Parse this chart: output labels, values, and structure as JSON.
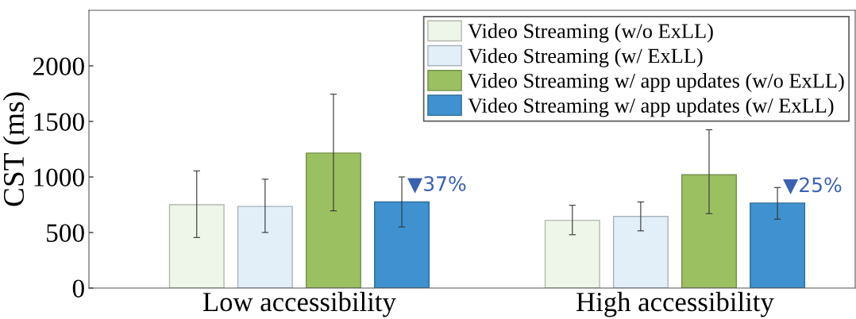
{
  "chart_data": {
    "type": "bar",
    "ylabel": "CST (ms)",
    "categories": [
      "Low accessibility",
      "High accessibility"
    ],
    "series": [
      {
        "name": "Video Streaming (w/o ExLL)",
        "color": "#eef5e9",
        "values": [
          750,
          610
        ],
        "errors": [
          [
            455,
            1055
          ],
          [
            480,
            745
          ]
        ]
      },
      {
        "name": "Video Streaming (w/ ExLL)",
        "color": "#e2eff9",
        "values": [
          735,
          645
        ],
        "errors": [
          [
            500,
            980
          ],
          [
            515,
            775
          ]
        ]
      },
      {
        "name": "Video Streaming w/ app updates (w/o ExLL)",
        "color": "#9bc062",
        "values": [
          1215,
          1020
        ],
        "errors": [
          [
            695,
            1745
          ],
          [
            670,
            1425
          ]
        ]
      },
      {
        "name": "Video Streaming w/ app updates (w/ ExLL)",
        "color": "#3f92cf",
        "values": [
          775,
          765
        ],
        "errors": [
          [
            550,
            1000
          ],
          [
            620,
            905
          ]
        ]
      }
    ],
    "ylim": [
      0,
      2500
    ],
    "yticks": [
      0,
      500,
      1000,
      1500,
      2000
    ],
    "annotations": [
      "▼37%",
      "▼25%"
    ],
    "legend": "top right",
    "grid": false
  }
}
